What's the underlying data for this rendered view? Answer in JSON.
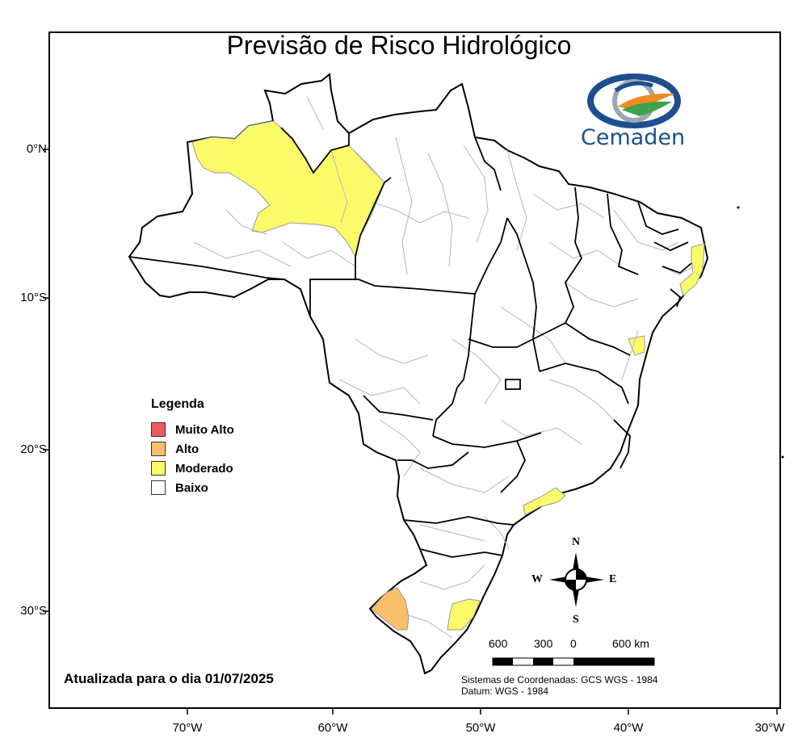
{
  "title": "Previsão de Risco Hidrológico",
  "logo": {
    "text": "Cemaden",
    "icon": "cemaden-eye-logo"
  },
  "legend": {
    "title": "Legenda",
    "items": [
      {
        "label": "Muito Alto",
        "color": "#f05a5a"
      },
      {
        "label": "Alto",
        "color": "#f8c06a"
      },
      {
        "label": "Moderado",
        "color": "#fbfb6a"
      },
      {
        "label": "Baixo",
        "color": "#ffffff"
      }
    ]
  },
  "latitude_labels": [
    "0°N",
    "10°S",
    "20°S",
    "30°S"
  ],
  "longitude_labels": [
    "70°W",
    "60°W",
    "50°W",
    "40°W",
    "30°W"
  ],
  "updated_text": "Atualizada para o dia 01/07/2025",
  "coordinate_system": "Sistemas de Coordenadas: GCS WGS - 1984",
  "datum": "Datum: WGS - 1984",
  "scale_bar": {
    "labels": [
      "600",
      "300",
      "0",
      "600 km"
    ]
  },
  "compass": {
    "north": "N",
    "south": "S",
    "east": "E",
    "west": "W"
  },
  "colors": {
    "border": "#000000",
    "municipal_lines": "#b5b5b5",
    "logo_blue": "#1d4f8f"
  }
}
